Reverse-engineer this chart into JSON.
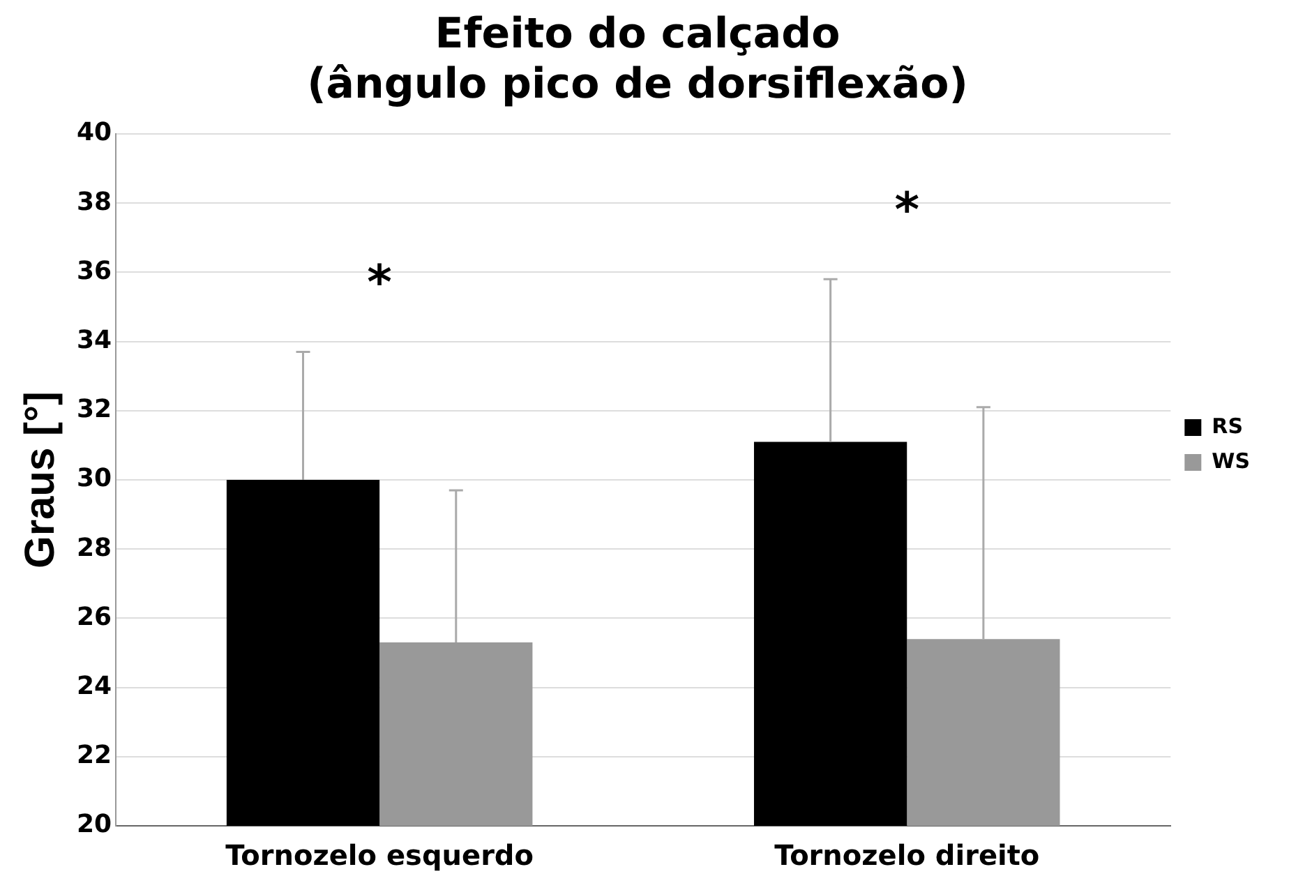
{
  "chart_data": {
    "type": "bar",
    "title": "Efeito do calçado\n(ângulo pico de dorsiflexão)",
    "ylabel": "Graus [°]",
    "categories": [
      "Tornozelo esquerdo",
      "Tornozelo direito"
    ],
    "series": [
      {
        "name": "RS",
        "color": "#000000",
        "values": [
          30.0,
          31.1
        ],
        "errors": [
          [
            30.0,
            33.7
          ],
          [
            31.1,
            35.8
          ]
        ]
      },
      {
        "name": "WS",
        "color": "#999999",
        "values": [
          25.3,
          25.4
        ],
        "errors": [
          [
            25.3,
            29.7
          ],
          [
            25.4,
            32.1
          ]
        ]
      }
    ],
    "ylim": [
      20,
      40
    ],
    "yticks": [
      20,
      22,
      24,
      26,
      28,
      30,
      32,
      34,
      36,
      38,
      40
    ],
    "grid": "y",
    "legend": "right",
    "annotations": [
      "*",
      "*"
    ]
  }
}
